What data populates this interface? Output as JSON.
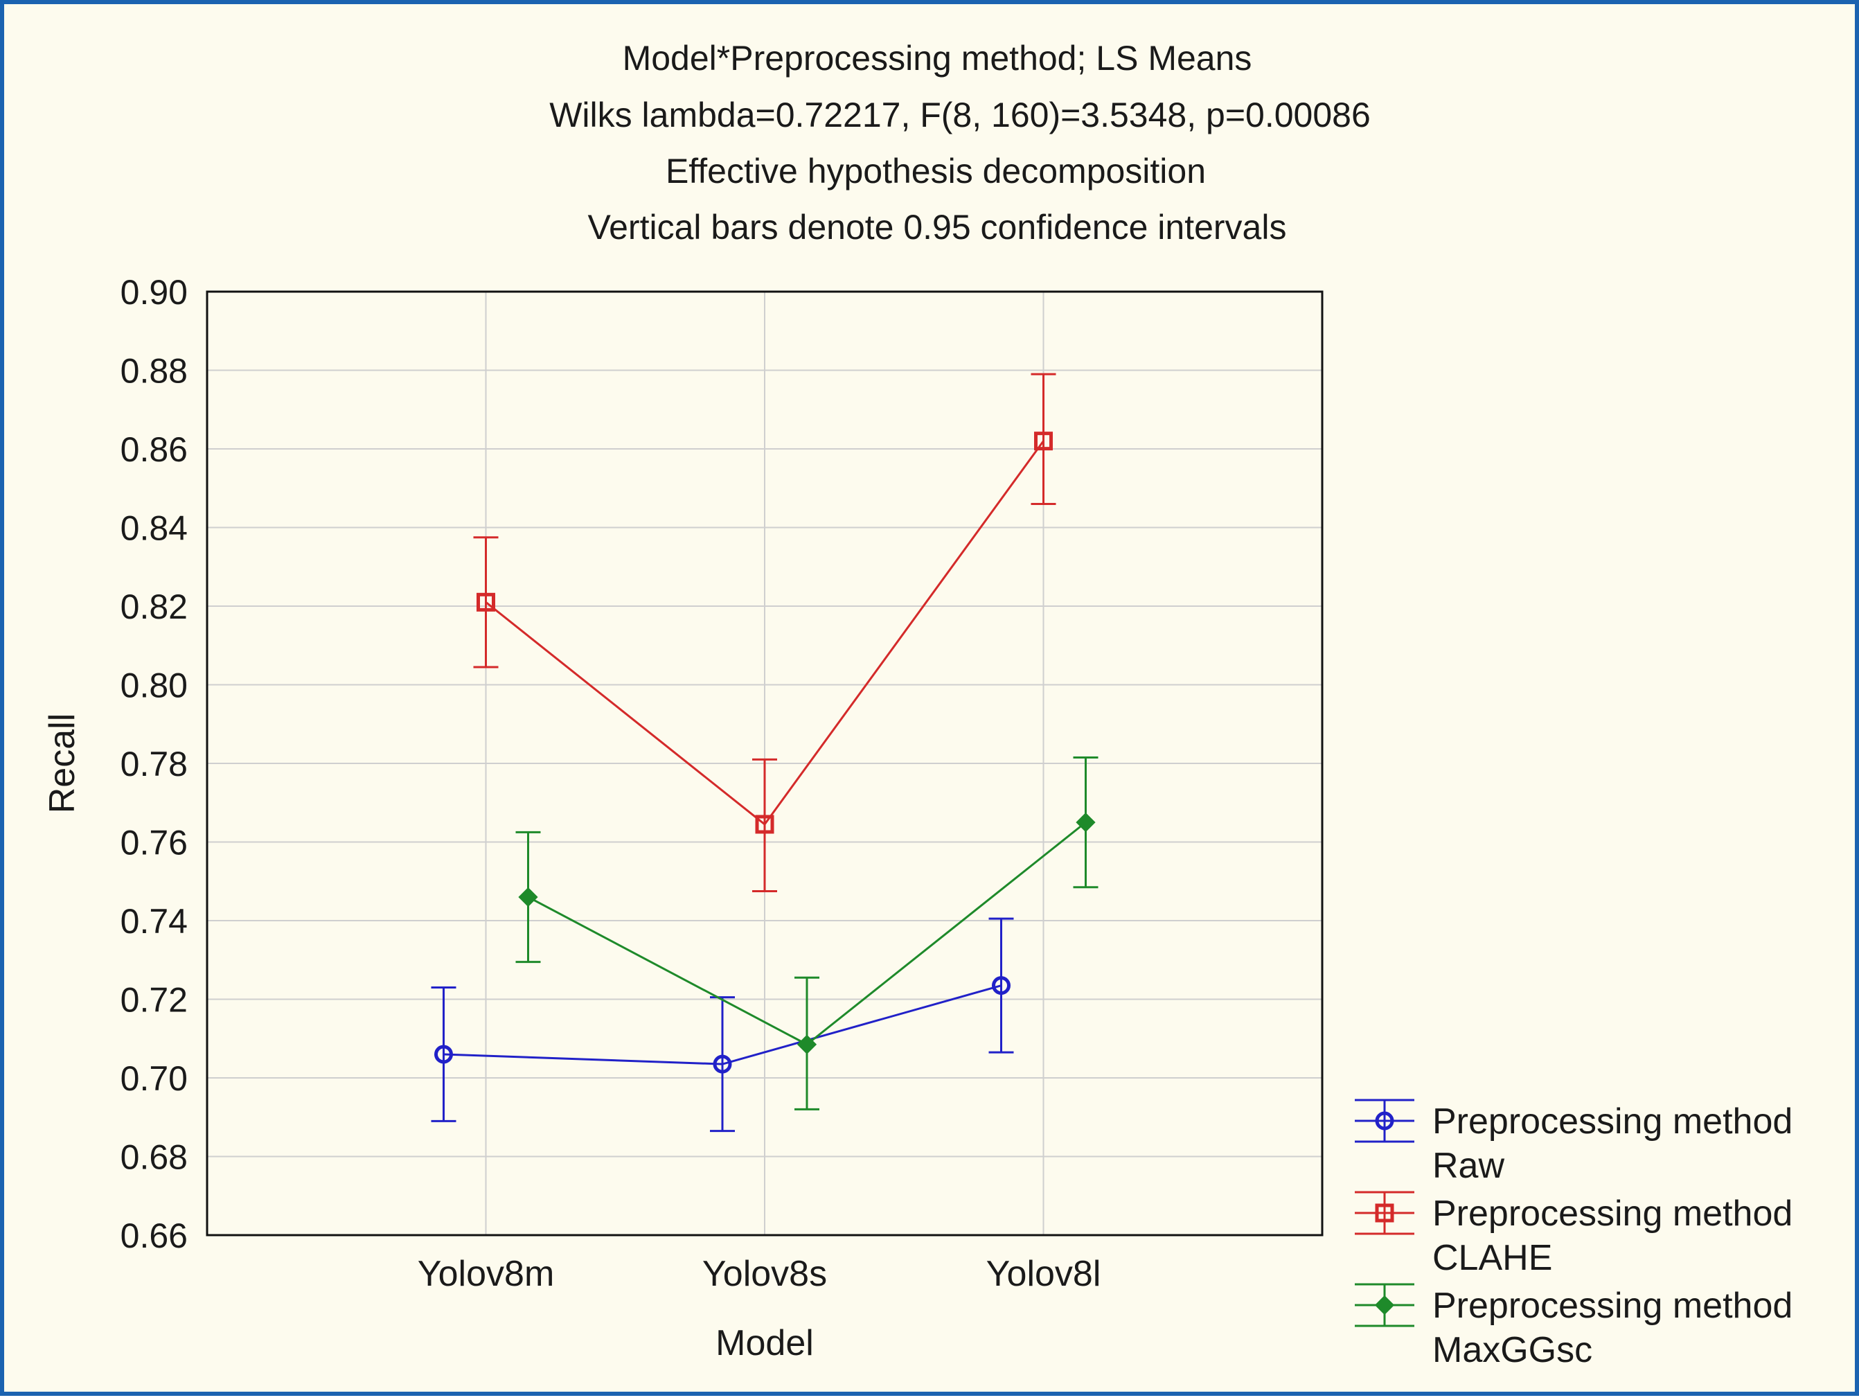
{
  "chart_data": {
    "type": "line",
    "title_lines": [
      "Model*Preprocessing method; LS Means",
      "Wilks lambda=0.72217, F(8, 160)=3.5348, p=0.00086",
      "Effective hypothesis decomposition",
      "Vertical bars denote 0.95 confidence intervals"
    ],
    "xlabel": "Model",
    "ylabel": "Recall",
    "categories": [
      "Yolov8m",
      "Yolov8s",
      "Yolov8l"
    ],
    "ylim": [
      0.66,
      0.9
    ],
    "yticks": [
      "0.66",
      "0.68",
      "0.70",
      "0.72",
      "0.74",
      "0.76",
      "0.78",
      "0.80",
      "0.82",
      "0.84",
      "0.86",
      "0.88",
      "0.90"
    ],
    "grid": true,
    "legend_position": "bottom-right",
    "series": [
      {
        "name": "Preprocessing method",
        "name2": "Raw",
        "marker": "circle",
        "color": "#2121c8",
        "values": [
          0.706,
          0.7035,
          0.7235
        ],
        "ci_low": [
          0.689,
          0.6865,
          0.7065
        ],
        "ci_high": [
          0.723,
          0.7205,
          0.7405
        ]
      },
      {
        "name": "Preprocessing method",
        "name2": "CLAHE",
        "marker": "square",
        "color": "#d42a2a",
        "values": [
          0.821,
          0.7645,
          0.862
        ],
        "ci_low": [
          0.8045,
          0.7475,
          0.846
        ],
        "ci_high": [
          0.8375,
          0.781,
          0.879
        ]
      },
      {
        "name": "Preprocessing method",
        "name2": "MaxGGsc",
        "marker": "diamond",
        "color": "#1e8a2a",
        "values": [
          0.746,
          0.7085,
          0.765
        ],
        "ci_low": [
          0.7295,
          0.692,
          0.7485
        ],
        "ci_high": [
          0.7625,
          0.7255,
          0.7815
        ]
      }
    ]
  }
}
